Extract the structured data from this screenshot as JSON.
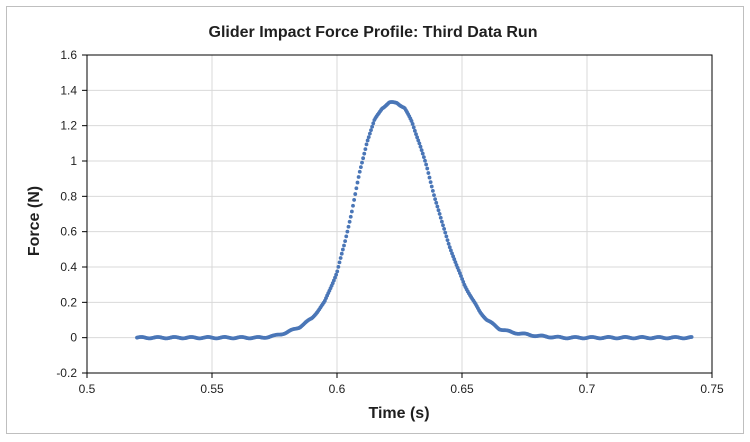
{
  "chart_data": {
    "type": "scatter",
    "title": "Glider Impact Force Profile: Third Data Run",
    "xlabel": "Time (s)",
    "ylabel": "Force (N)",
    "xlim": [
      0.5,
      0.75
    ],
    "ylim": [
      -0.2,
      1.6
    ],
    "xticks": [
      "0.5",
      "0.55",
      "0.6",
      "0.65",
      "0.7",
      "0.75"
    ],
    "yticks": [
      "-0.2",
      "0",
      "0.2",
      "0.4",
      "0.6",
      "0.8",
      "1",
      "1.2",
      "1.4",
      "1.6"
    ],
    "grid": true,
    "marker_color": "#4a76b7",
    "series": [
      {
        "x": [
          0.52,
          0.525,
          0.53,
          0.535,
          0.54,
          0.545,
          0.55,
          0.555,
          0.56,
          0.565,
          0.57,
          0.575,
          0.58,
          0.585,
          0.59,
          0.595,
          0.6,
          0.603,
          0.606,
          0.609,
          0.612,
          0.615,
          0.618,
          0.621,
          0.624,
          0.627,
          0.63,
          0.633,
          0.636,
          0.639,
          0.642,
          0.645,
          0.648,
          0.651,
          0.654,
          0.657,
          0.66,
          0.665,
          0.67,
          0.675,
          0.68,
          0.69,
          0.7,
          0.71,
          0.72,
          0.73,
          0.742
        ],
        "y": [
          0.0,
          0.0,
          0.0,
          0.0,
          0.0,
          0.0,
          0.0,
          0.0,
          0.0,
          0.0,
          0.0,
          0.01,
          0.03,
          0.06,
          0.11,
          0.2,
          0.37,
          0.53,
          0.72,
          0.93,
          1.11,
          1.23,
          1.3,
          1.33,
          1.33,
          1.3,
          1.22,
          1.1,
          0.96,
          0.8,
          0.65,
          0.52,
          0.4,
          0.3,
          0.22,
          0.15,
          0.1,
          0.05,
          0.03,
          0.02,
          0.01,
          0.0,
          0.0,
          0.0,
          0.0,
          0.0,
          0.0
        ]
      }
    ]
  }
}
